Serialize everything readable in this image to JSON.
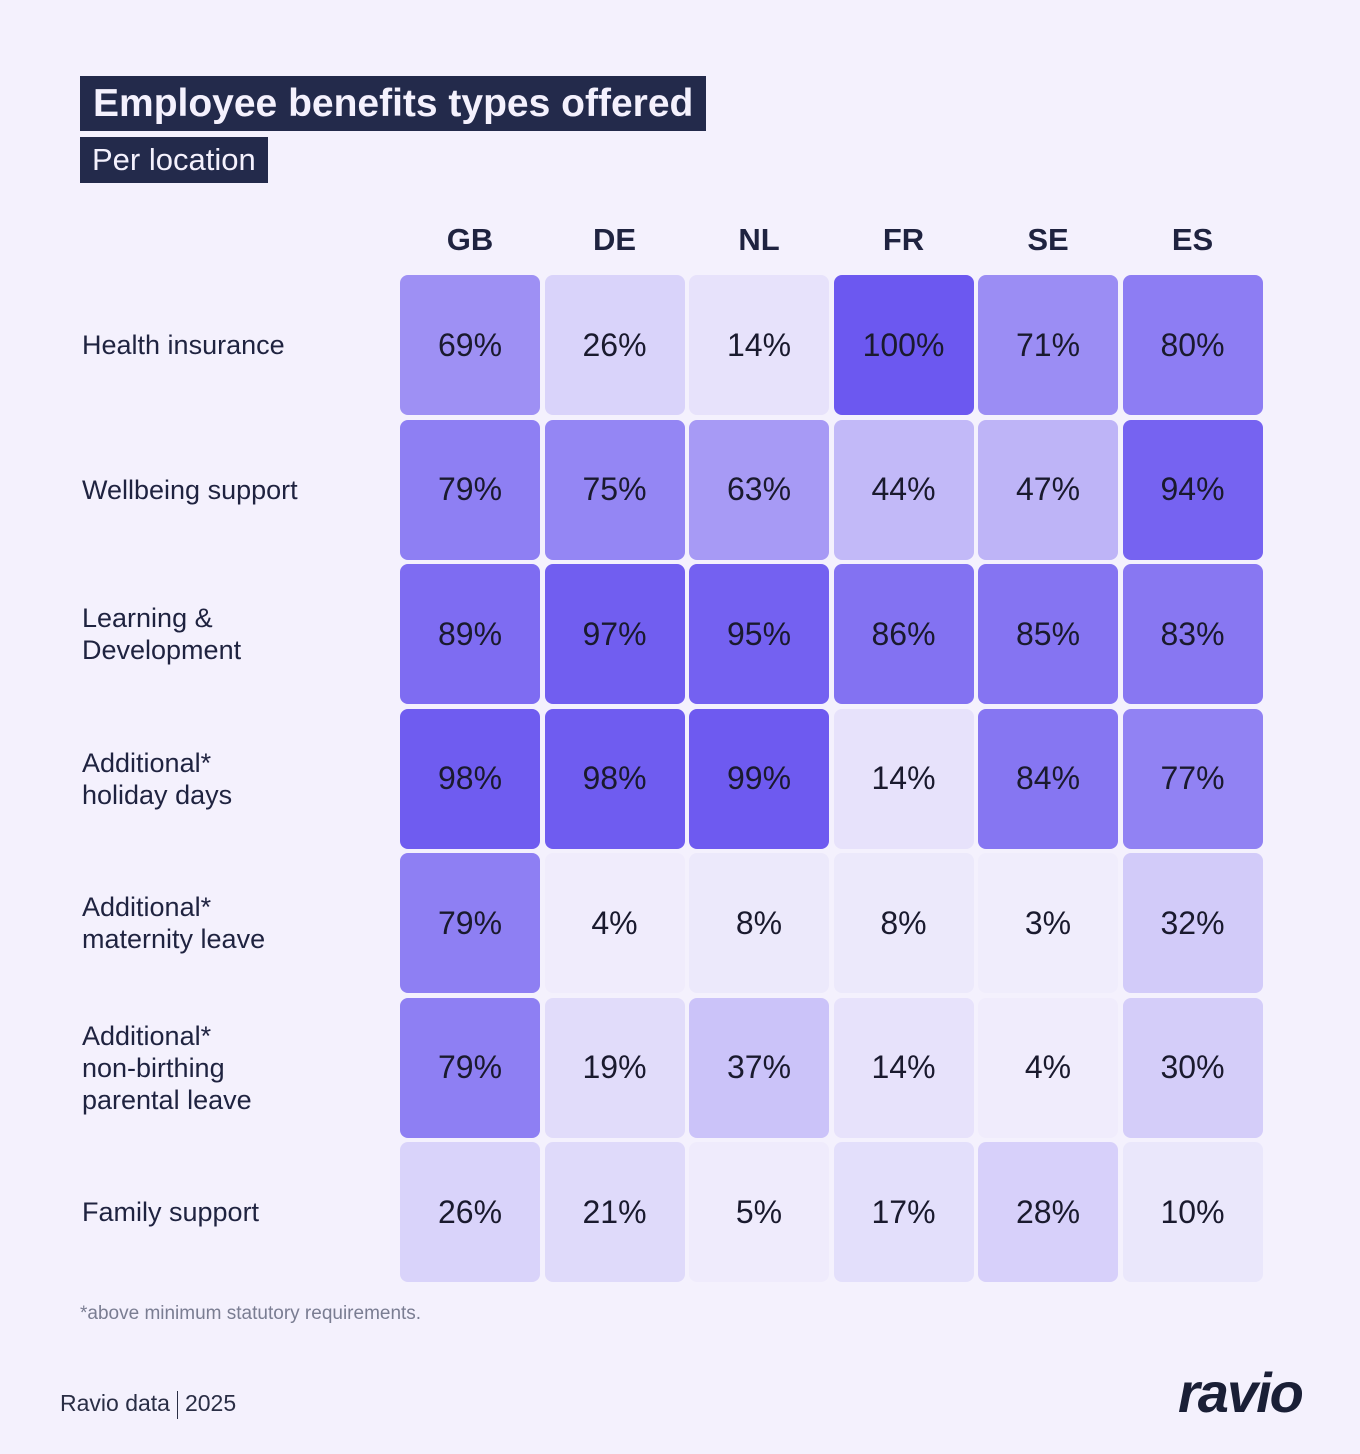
{
  "chart_data": {
    "type": "heatmap",
    "title": "Employee benefits types offered",
    "subtitle": "Per location",
    "columns": [
      "GB",
      "DE",
      "NL",
      "FR",
      "SE",
      "ES"
    ],
    "rows": [
      "Health insurance",
      "Wellbeing support",
      "Learning &\nDevelopment",
      "Additional*\nholiday days",
      "Additional*\nmaternity leave",
      "Additional*\nnon-birthing\nparental leave",
      "Family support"
    ],
    "values": [
      [
        69,
        26,
        14,
        100,
        71,
        80
      ],
      [
        79,
        75,
        63,
        44,
        47,
        94
      ],
      [
        89,
        97,
        95,
        86,
        85,
        83
      ],
      [
        98,
        98,
        99,
        14,
        84,
        77
      ],
      [
        79,
        4,
        8,
        8,
        3,
        32
      ],
      [
        79,
        19,
        37,
        14,
        4,
        30
      ],
      [
        26,
        21,
        5,
        17,
        28,
        10
      ]
    ],
    "unit": "%",
    "color_scale": {
      "low": "#f2effc",
      "high": "#6c58f0"
    },
    "note": "*above minimum statutory requirements."
  },
  "footer": {
    "source": "Ravio data",
    "year": "2025",
    "logo": "ravio"
  },
  "colors": {
    "title_bg": "#232a4b",
    "background": "#f4f1fd"
  }
}
